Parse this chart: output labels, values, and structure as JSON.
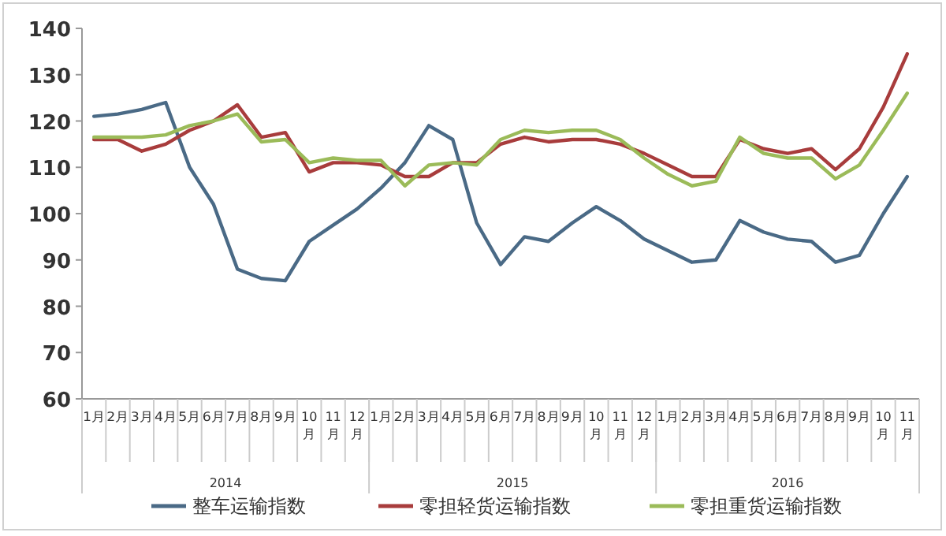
{
  "chart_data": {
    "type": "line",
    "categories": [
      "1月",
      "2月",
      "3月",
      "4月",
      "5月",
      "6月",
      "7月",
      "8月",
      "9月",
      "10月",
      "11月",
      "12月",
      "1月",
      "2月",
      "3月",
      "4月",
      "5月",
      "6月",
      "7月",
      "8月",
      "9月",
      "10月",
      "11月",
      "12月",
      "1月",
      "2月",
      "3月",
      "4月",
      "5月",
      "6月",
      "7月",
      "8月",
      "9月",
      "10月",
      "11月"
    ],
    "series": [
      {
        "name": "整车运输指数",
        "color": "#4a6a86",
        "values": [
          121,
          121.5,
          122.5,
          124,
          110,
          102,
          88,
          86,
          85.5,
          94,
          97.5,
          101,
          105.5,
          111,
          119,
          116,
          98,
          89,
          95,
          94,
          98,
          101.5,
          98.5,
          94.5,
          92,
          89.5,
          90,
          98.5,
          96,
          94.5,
          94,
          89.5,
          91,
          100,
          108
        ]
      },
      {
        "name": "零担轻货运输指数",
        "color": "#a83c3c",
        "values": [
          116,
          116,
          113.5,
          115,
          118,
          120,
          123.5,
          116.5,
          117.5,
          109,
          111,
          111,
          110.5,
          108,
          108,
          111,
          111,
          115,
          116.5,
          115.5,
          116,
          116,
          115,
          113,
          110.5,
          108,
          108,
          116,
          114,
          113,
          114,
          109.5,
          114,
          123,
          134.5
        ]
      },
      {
        "name": "零担重货运输指数",
        "color": "#9bbb59",
        "values": [
          116.5,
          116.5,
          116.5,
          117,
          119,
          120,
          121.5,
          115.5,
          116,
          111,
          112,
          111.5,
          111.5,
          106,
          110.5,
          111,
          110.5,
          116,
          118,
          117.5,
          118,
          118,
          116,
          112,
          108.5,
          106,
          107,
          116.5,
          113,
          112,
          112,
          107.5,
          110.5,
          118,
          126
        ]
      }
    ],
    "annotations": [
      "2014",
      "2015",
      "2016"
    ],
    "ylim": [
      60,
      140
    ],
    "yticks": [
      60,
      70,
      80,
      90,
      100,
      110,
      120,
      130,
      140
    ],
    "legend": "bottom",
    "grid": false,
    "marker": "none",
    "line_style": "solid"
  }
}
